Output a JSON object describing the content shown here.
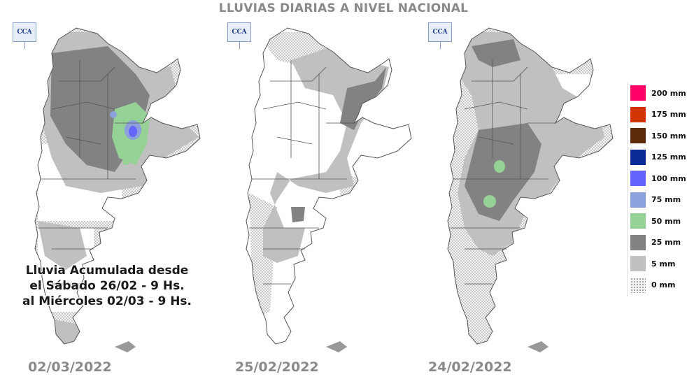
{
  "title": "LLUVIAS DIARIAS A NIVEL NACIONAL",
  "logo_text": "CCA",
  "maps": [
    {
      "date": "02/03/2022"
    },
    {
      "date": "25/02/2022"
    },
    {
      "date": "24/02/2022"
    }
  ],
  "note": {
    "line1": "Lluvia Acumulada desde",
    "line2": "el Sábado 26/02 - 9 Hs.",
    "line3": "al Miércoles 02/03 - 9 Hs."
  },
  "legend": [
    {
      "label": "200 mm",
      "color": "#ff0066"
    },
    {
      "label": "175 mm",
      "color": "#d13400"
    },
    {
      "label": "150 mm",
      "color": "#5c2a0a"
    },
    {
      "label": "125 mm",
      "color": "#0a2a96"
    },
    {
      "label": "100 mm",
      "color": "#6464ff"
    },
    {
      "label": "75 mm",
      "color": "#8ca0dc"
    },
    {
      "label": "50 mm",
      "color": "#96d296"
    },
    {
      "label": "25 mm",
      "color": "#828282"
    },
    {
      "label": "5 mm",
      "color": "#c0c0c0"
    },
    {
      "label": "0 mm",
      "color": "dotted"
    }
  ]
}
